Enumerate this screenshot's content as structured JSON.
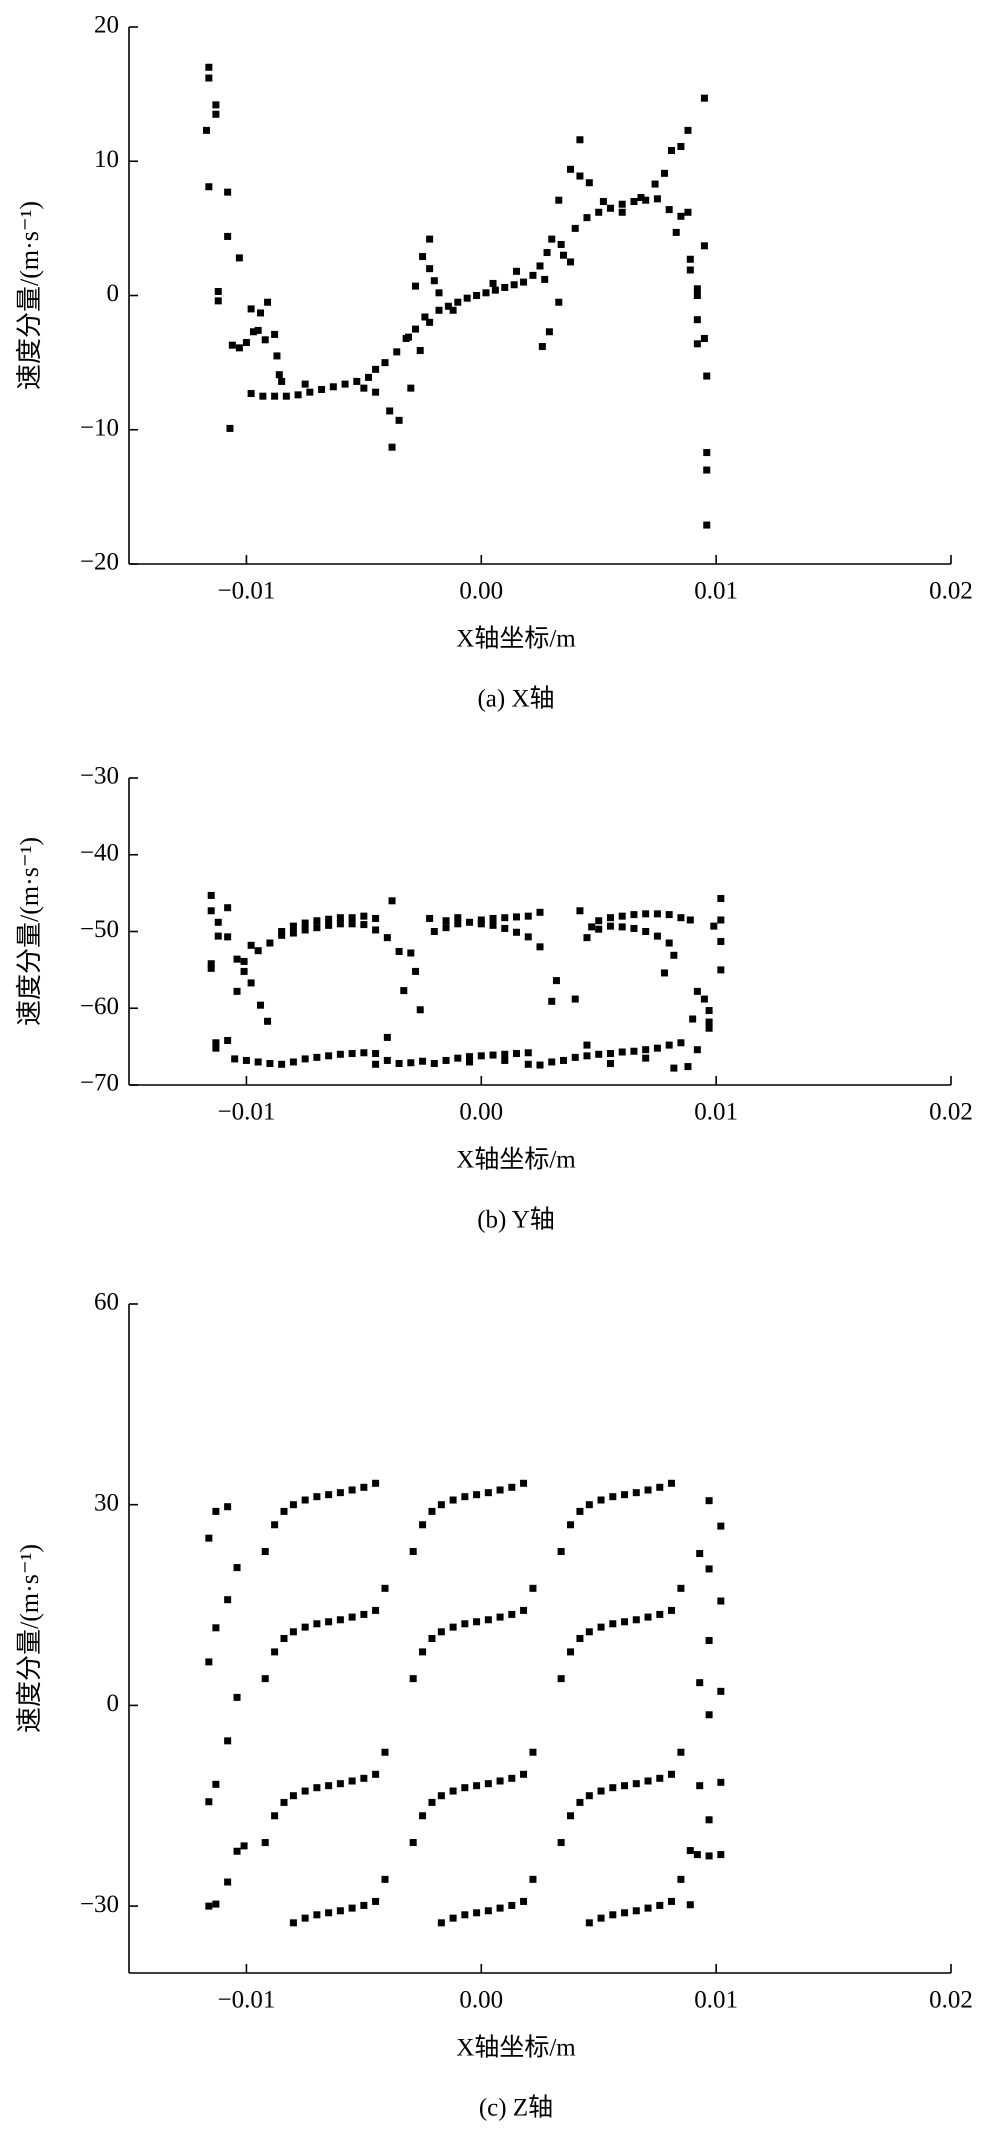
{
  "chart_data": [
    {
      "type": "scatter",
      "title": "(a) X轴",
      "xlabel": "X轴坐标/m",
      "ylabel": "速度分量/(m·s⁻¹)",
      "color": "#000000",
      "xlim": [
        -0.015,
        0.02
      ],
      "ylim": [
        -20,
        20
      ],
      "xticks": [
        {
          "value": -0.01,
          "label": "−0.01"
        },
        {
          "value": 0,
          "label": "0.00"
        },
        0.01,
        0.02
      ],
      "yticks": [
        {
          "value": -20,
          "label": "−20"
        },
        {
          "value": -10,
          "label": "−10"
        },
        0,
        10,
        20
      ],
      "x": [
        -0.0116,
        -0.0116,
        -0.0117,
        -0.0116,
        -0.0113,
        -0.0113,
        -0.0112,
        -0.0112,
        -0.0108,
        -0.0108,
        -0.0107,
        -0.0106,
        -0.0103,
        -0.0103,
        -0.01,
        -0.0098,
        -0.0097,
        -0.0094,
        -0.0095,
        -0.0091,
        -0.0092,
        -0.0088,
        -0.0086,
        -0.0087,
        -0.0085,
        -0.0098,
        -0.0093,
        -0.0088,
        -0.0083,
        -0.0078,
        -0.0073,
        -0.0068,
        -0.0063,
        -0.0058,
        -0.0053,
        -0.0048,
        -0.0045,
        -0.0041,
        -0.0036,
        -0.0032,
        -0.0028,
        -0.0024,
        -0.0018,
        -0.0014,
        -0.001,
        -0.0006,
        -0.0002,
        0.0002,
        0.0006,
        0.001,
        0.0014,
        0.0018,
        0.0022,
        0.0025,
        0.0034,
        0.004,
        0.0045,
        0.005,
        0.0055,
        0.006,
        0.0065,
        0.007,
        0.0075,
        0.008,
        0.0085,
        0.0088,
        -0.0075,
        -0.005,
        -0.0045,
        -0.0012,
        0.0005,
        0.0015,
        0.0052,
        0.006,
        0.0068,
        0.0083,
        -0.0038,
        -0.0035,
        -0.0039,
        -0.003,
        -0.0028,
        -0.0025,
        -0.0022,
        -0.0022,
        -0.002,
        -0.0018,
        -0.0031,
        -0.0026,
        -0.0022,
        0.0026,
        0.0029,
        0.003,
        0.0033,
        0.0033,
        0.0038,
        0.0042,
        0.0042,
        0.0046,
        0.0035,
        0.0038,
        0.0028,
        0.0027,
        0.0085,
        0.0088,
        0.0081,
        0.0095,
        0.0095,
        0.0089,
        0.0089,
        0.0092,
        0.0092,
        0.0092,
        0.0092,
        0.0095,
        0.0096,
        0.0096,
        0.0096,
        0.0096,
        0.0078,
        0.0074
      ],
      "values": [
        17,
        16.2,
        12.3,
        8.1,
        14.2,
        13.5,
        0.3,
        -0.4,
        7.7,
        4.4,
        -9.9,
        -3.7,
        -3.9,
        2.8,
        -3.5,
        -1,
        -2.7,
        -1.3,
        -2.6,
        -0.5,
        -3.3,
        -2.9,
        -5.9,
        -4.5,
        -6.4,
        -7.3,
        -7.5,
        -7.5,
        -7.5,
        -7.4,
        -7.2,
        -7,
        -6.8,
        -6.6,
        -6.4,
        -6.1,
        -5.5,
        -5,
        -4.2,
        -3.2,
        -2.5,
        -1.6,
        -1.1,
        -0.8,
        -0.5,
        -0.2,
        0,
        0.2,
        0.4,
        0.6,
        0.8,
        1,
        1.5,
        2.2,
        3.8,
        5,
        5.8,
        6.2,
        6.5,
        6.8,
        7,
        7.1,
        7.2,
        6.4,
        5.9,
        6.2,
        -6.6,
        -6.9,
        -7.2,
        -1.1,
        0.9,
        1.8,
        7,
        6.2,
        7.3,
        4.7,
        -11.3,
        -9.3,
        -8.6,
        -6.9,
        0.7,
        2.9,
        4.2,
        2,
        1.1,
        0.2,
        -3.1,
        -4.1,
        -2,
        -3.8,
        -2.7,
        4.2,
        7.1,
        -0.5,
        9.4,
        11.6,
        8.9,
        8.4,
        3,
        2.5,
        3.2,
        1.2,
        11.1,
        12.3,
        10.8,
        14.7,
        3.7,
        2.7,
        1.9,
        0.5,
        0,
        -1.8,
        -3.6,
        -3.2,
        -6,
        -11.7,
        -13,
        -17.1,
        9.1,
        8.3
      ]
    },
    {
      "type": "scatter",
      "title": "(b) Y轴",
      "xlabel": "X轴坐标/m",
      "ylabel": "速度分量/(m·s⁻¹)",
      "color": "#000000",
      "xlim": [
        -0.015,
        0.02
      ],
      "ylim": [
        -70,
        -30
      ],
      "xticks": [
        {
          "value": -0.01,
          "label": "−0.01"
        },
        {
          "value": 0,
          "label": "0.00"
        },
        0.01,
        0.02
      ],
      "yticks": [
        {
          "value": -70,
          "label": "−70"
        },
        {
          "value": -60,
          "label": "−60"
        },
        {
          "value": -50,
          "label": "−50"
        },
        {
          "value": -40,
          "label": "−40"
        },
        {
          "value": -30,
          "label": "−30"
        }
      ],
      "x": [
        -0.0115,
        -0.0115,
        -0.0115,
        -0.0115,
        -0.0113,
        -0.0113,
        -0.0112,
        -0.0112,
        -0.0108,
        -0.0108,
        -0.0108,
        -0.0104,
        -0.0104,
        -0.0101,
        -0.0101,
        -0.0098,
        -0.0098,
        -0.0094,
        -0.0091,
        -0.0095,
        -0.009,
        -0.0085,
        -0.008,
        -0.0075,
        -0.007,
        -0.0065,
        -0.006,
        -0.0055,
        -0.005,
        -0.0045,
        -0.0085,
        -0.008,
        -0.0075,
        -0.007,
        -0.0065,
        -0.006,
        -0.0055,
        -0.005,
        -0.0045,
        -0.004,
        -0.0038,
        -0.0035,
        -0.0033,
        -0.003,
        -0.0028,
        -0.0026,
        -0.0022,
        -0.002,
        -0.0015,
        -0.001,
        -0.0005,
        0,
        0.0005,
        0.001,
        0.0015,
        0.002,
        0.0025,
        -0.0015,
        -0.001,
        0,
        0.0005,
        0.001,
        0.0015,
        0.002,
        0.0025,
        0.003,
        0.0032,
        0.004,
        0.0042,
        0.0045,
        0.0047,
        0.005,
        0.0055,
        0.006,
        0.0065,
        0.007,
        0.0075,
        0.008,
        0.0085,
        0.0089,
        0.005,
        0.0055,
        0.006,
        0.0065,
        0.007,
        0.0075,
        0.008,
        0.0082,
        0.0078,
        0.009,
        0.0092,
        0.0095,
        0.0097,
        0.0097,
        0.0097,
        0.0099,
        0.0102,
        0.0102,
        0.0102,
        0.0102,
        0.0092,
        -0.0105,
        -0.01,
        -0.0095,
        -0.009,
        -0.0085,
        -0.008,
        -0.0075,
        -0.007,
        -0.0065,
        -0.006,
        -0.0055,
        -0.005,
        -0.0045,
        -0.004,
        -0.0035,
        -0.003,
        -0.0025,
        -0.002,
        -0.0015,
        -0.001,
        -0.0005,
        0,
        0.0005,
        0.001,
        0.0015,
        0.002,
        0.0025,
        0.003,
        0.0035,
        0.004,
        0.0045,
        0.005,
        0.0055,
        0.006,
        0.0065,
        0.007,
        0.0075,
        0.008,
        0.0085,
        0.0088,
        -0.0045,
        -0.004,
        -0.0005,
        0.001,
        0.002,
        0.0045,
        0.0055,
        0.007,
        0.0082
      ],
      "values": [
        -45.3,
        -47.3,
        -54.2,
        -54.8,
        -64.5,
        -65.2,
        -48.8,
        -50.6,
        -46.9,
        -50.7,
        -64.2,
        -53.6,
        -57.8,
        -53.9,
        -55.2,
        -51.8,
        -56.7,
        -59.6,
        -61.7,
        -52.5,
        -51.5,
        -50,
        -49.3,
        -48.9,
        -48.6,
        -48.4,
        -48.2,
        -48.2,
        -48,
        -48.3,
        -50.5,
        -50.2,
        -49.8,
        -49.5,
        -49.2,
        -49,
        -49,
        -49.1,
        -49.8,
        -50.8,
        -46,
        -52.6,
        -57.7,
        -52.8,
        -55.2,
        -60.2,
        -48.3,
        -50,
        -49.5,
        -49,
        -48.8,
        -48.5,
        -48.3,
        -48.2,
        -48.1,
        -48,
        -47.5,
        -48.6,
        -48.2,
        -49,
        -49.2,
        -49.6,
        -50.1,
        -50.7,
        -52,
        -59.1,
        -56.4,
        -58.8,
        -47.3,
        -50.8,
        -49.4,
        -48.6,
        -48.2,
        -48,
        -47.8,
        -47.7,
        -47.7,
        -47.8,
        -48.2,
        -48.5,
        -49.7,
        -49.3,
        -49.4,
        -49.6,
        -50,
        -50.6,
        -51.5,
        -53.1,
        -55.4,
        -61.4,
        -57.8,
        -58.8,
        -60.3,
        -61.8,
        -62.6,
        -49.3,
        -45.7,
        -48.5,
        -51.3,
        -55,
        -65.4,
        -66.6,
        -66.8,
        -67,
        -67.2,
        -67.3,
        -67,
        -66.6,
        -66.4,
        -66.2,
        -66,
        -65.9,
        -65.8,
        -65.9,
        -66.8,
        -67.2,
        -67.1,
        -66.9,
        -67.2,
        -66.8,
        -66.5,
        -66.3,
        -66.2,
        -66.1,
        -66,
        -65.9,
        -65.8,
        -67.4,
        -67,
        -66.8,
        -66.4,
        -66.2,
        -66,
        -65.9,
        -65.7,
        -65.6,
        -65.4,
        -65.2,
        -64.8,
        -64.5,
        -67.6,
        -67.3,
        -63.8,
        -67,
        -66.8,
        -67.3,
        -64.8,
        -67.2,
        -66.5,
        -67.8
      ]
    },
    {
      "type": "scatter",
      "title": "(c) Z轴",
      "xlabel": "X轴坐标/m",
      "ylabel": "速度分量/(m·s⁻¹)",
      "color": "#000000",
      "xlim": [
        -0.015,
        0.02
      ],
      "ylim": [
        -40,
        60
      ],
      "xticks": [
        {
          "value": -0.01,
          "label": "−0.01"
        },
        {
          "value": 0,
          "label": "0.00"
        },
        0.01,
        0.02
      ],
      "yticks": [
        {
          "value": -30,
          "label": "−30"
        },
        0,
        30,
        60
      ],
      "x": [
        -0.0092,
        -0.0088,
        -0.0084,
        -0.008,
        -0.0075,
        -0.007,
        -0.0065,
        -0.006,
        -0.0055,
        -0.005,
        -0.0045,
        -0.0092,
        -0.0088,
        -0.0084,
        -0.008,
        -0.0075,
        -0.007,
        -0.0065,
        -0.006,
        -0.0055,
        -0.005,
        -0.0045,
        -0.0041,
        -0.0092,
        -0.0088,
        -0.0084,
        -0.008,
        -0.0075,
        -0.007,
        -0.0065,
        -0.006,
        -0.0055,
        -0.005,
        -0.0045,
        -0.0041,
        -0.008,
        -0.0075,
        -0.007,
        -0.0065,
        -0.006,
        -0.0055,
        -0.005,
        -0.0045,
        -0.0041,
        -0.0029,
        -0.0025,
        -0.0021,
        -0.0017,
        -0.0012,
        -0.0007,
        -0.0002,
        0.0003,
        0.0008,
        0.0013,
        0.0018,
        -0.0029,
        -0.0025,
        -0.0021,
        -0.0017,
        -0.0012,
        -0.0007,
        -0.0002,
        0.0003,
        0.0008,
        0.0013,
        0.0018,
        0.0022,
        -0.0029,
        -0.0025,
        -0.0021,
        -0.0017,
        -0.0012,
        -0.0007,
        -0.0002,
        0.0003,
        0.0008,
        0.0013,
        0.0018,
        0.0022,
        -0.0017,
        -0.0012,
        -0.0007,
        -0.0002,
        0.0003,
        0.0008,
        0.0013,
        0.0018,
        0.0022,
        0.0034,
        0.0038,
        0.0042,
        0.0046,
        0.0051,
        0.0056,
        0.0061,
        0.0066,
        0.0071,
        0.0076,
        0.0081,
        0.0034,
        0.0038,
        0.0042,
        0.0046,
        0.0051,
        0.0056,
        0.0061,
        0.0066,
        0.0071,
        0.0076,
        0.0081,
        0.0085,
        0.0034,
        0.0038,
        0.0042,
        0.0046,
        0.0051,
        0.0056,
        0.0061,
        0.0066,
        0.0071,
        0.0076,
        0.0081,
        0.0085,
        0.0046,
        0.0051,
        0.0056,
        0.0061,
        0.0066,
        0.0071,
        0.0076,
        0.0081,
        0.0085,
        -0.0116,
        -0.0116,
        -0.0116,
        -0.0116,
        -0.0113,
        -0.0113,
        -0.0113,
        -0.0113,
        -0.0108,
        -0.0108,
        -0.0108,
        -0.0108,
        -0.0104,
        -0.0104,
        -0.0104,
        -0.0101,
        0.0097,
        0.0097,
        0.0097,
        0.0097,
        0.0097,
        0.0097,
        0.0093,
        0.0093,
        0.0093,
        0.0102,
        0.0102,
        0.0102,
        0.0102,
        0.0102,
        0.0089,
        0.0089,
        0.0092
      ],
      "values": [
        23,
        27,
        29,
        30,
        30.7,
        31.2,
        31.5,
        31.8,
        32.2,
        32.6,
        33.2,
        4,
        8,
        10,
        11,
        11.7,
        12.2,
        12.5,
        12.8,
        13.2,
        13.6,
        14.2,
        17.5,
        -20.5,
        -16.5,
        -14.5,
        -13.5,
        -12.8,
        -12.3,
        -12,
        -11.7,
        -11.3,
        -10.9,
        -10.3,
        -7,
        -32.5,
        -31.8,
        -31.3,
        -31,
        -30.7,
        -30.3,
        -29.9,
        -29.3,
        -26,
        23,
        27,
        29,
        30,
        30.7,
        31.2,
        31.5,
        31.8,
        32.2,
        32.6,
        33.2,
        4,
        8,
        10,
        11,
        11.7,
        12.2,
        12.5,
        12.8,
        13.2,
        13.6,
        14.2,
        17.5,
        -20.5,
        -16.5,
        -14.5,
        -13.5,
        -12.8,
        -12.3,
        -12,
        -11.7,
        -11.3,
        -10.9,
        -10.3,
        -7,
        -32.5,
        -31.8,
        -31.3,
        -31,
        -30.7,
        -30.3,
        -29.9,
        -29.3,
        -26,
        23,
        27,
        29,
        30,
        30.7,
        31.2,
        31.5,
        31.8,
        32.2,
        32.6,
        33.2,
        4,
        8,
        10,
        11,
        11.7,
        12.2,
        12.5,
        12.8,
        13.2,
        13.6,
        14.2,
        17.5,
        -20.5,
        -16.5,
        -14.5,
        -13.5,
        -12.8,
        -12.3,
        -12,
        -11.7,
        -11.3,
        -10.9,
        -10.3,
        -7,
        -32.5,
        -31.8,
        -31.3,
        -31,
        -30.7,
        -30.3,
        -29.9,
        -29.3,
        -26,
        25,
        6.5,
        -14.4,
        -30,
        29,
        11.6,
        -11.8,
        -29.7,
        29.7,
        15.8,
        -5.3,
        -26.4,
        20.6,
        1.2,
        -21.8,
        -21,
        30.6,
        20.4,
        9.7,
        -1.4,
        -17.1,
        -22.5,
        22.7,
        3.4,
        -12,
        26.8,
        15.6,
        2.1,
        -11.5,
        -22.3,
        -29.8,
        -21.7,
        -22.3
      ]
    }
  ]
}
